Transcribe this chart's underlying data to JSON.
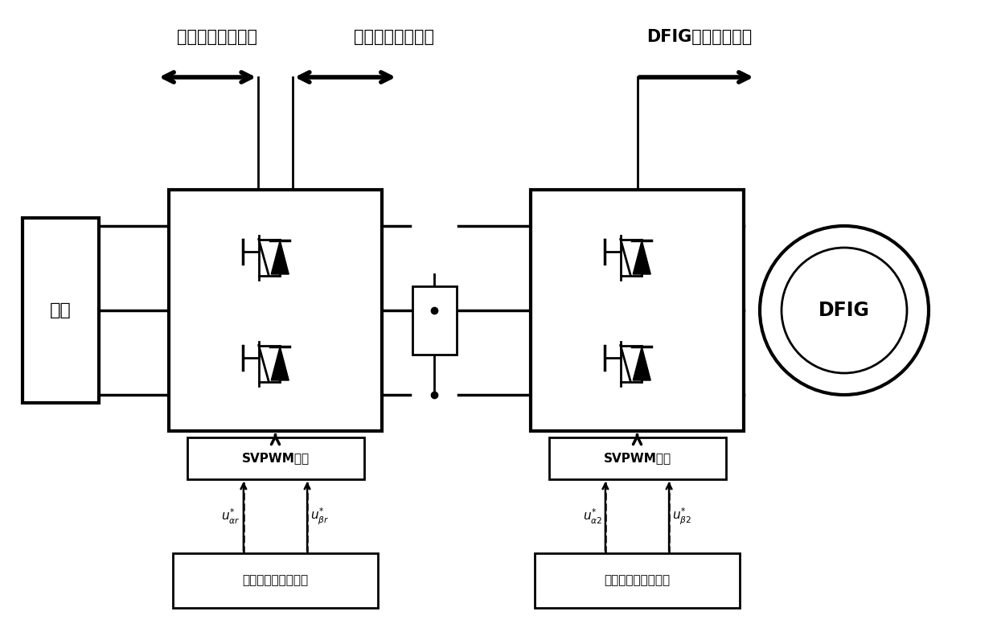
{
  "bg_color": "#ffffff",
  "line_color": "#000000",
  "title_label1": "单位功率因数控制",
  "title_label2": "直流母线电压控制",
  "title_label3": "DFIG矢量变换控制",
  "grid_label": "电网",
  "dfig_label": "DFIG",
  "svpwm_label1": "SVPWM调制",
  "svpwm_label2": "SVPWM调制",
  "ctrl_label1": "网侧变换器控制系统",
  "ctrl_label2": "机侧变换器控制系统"
}
